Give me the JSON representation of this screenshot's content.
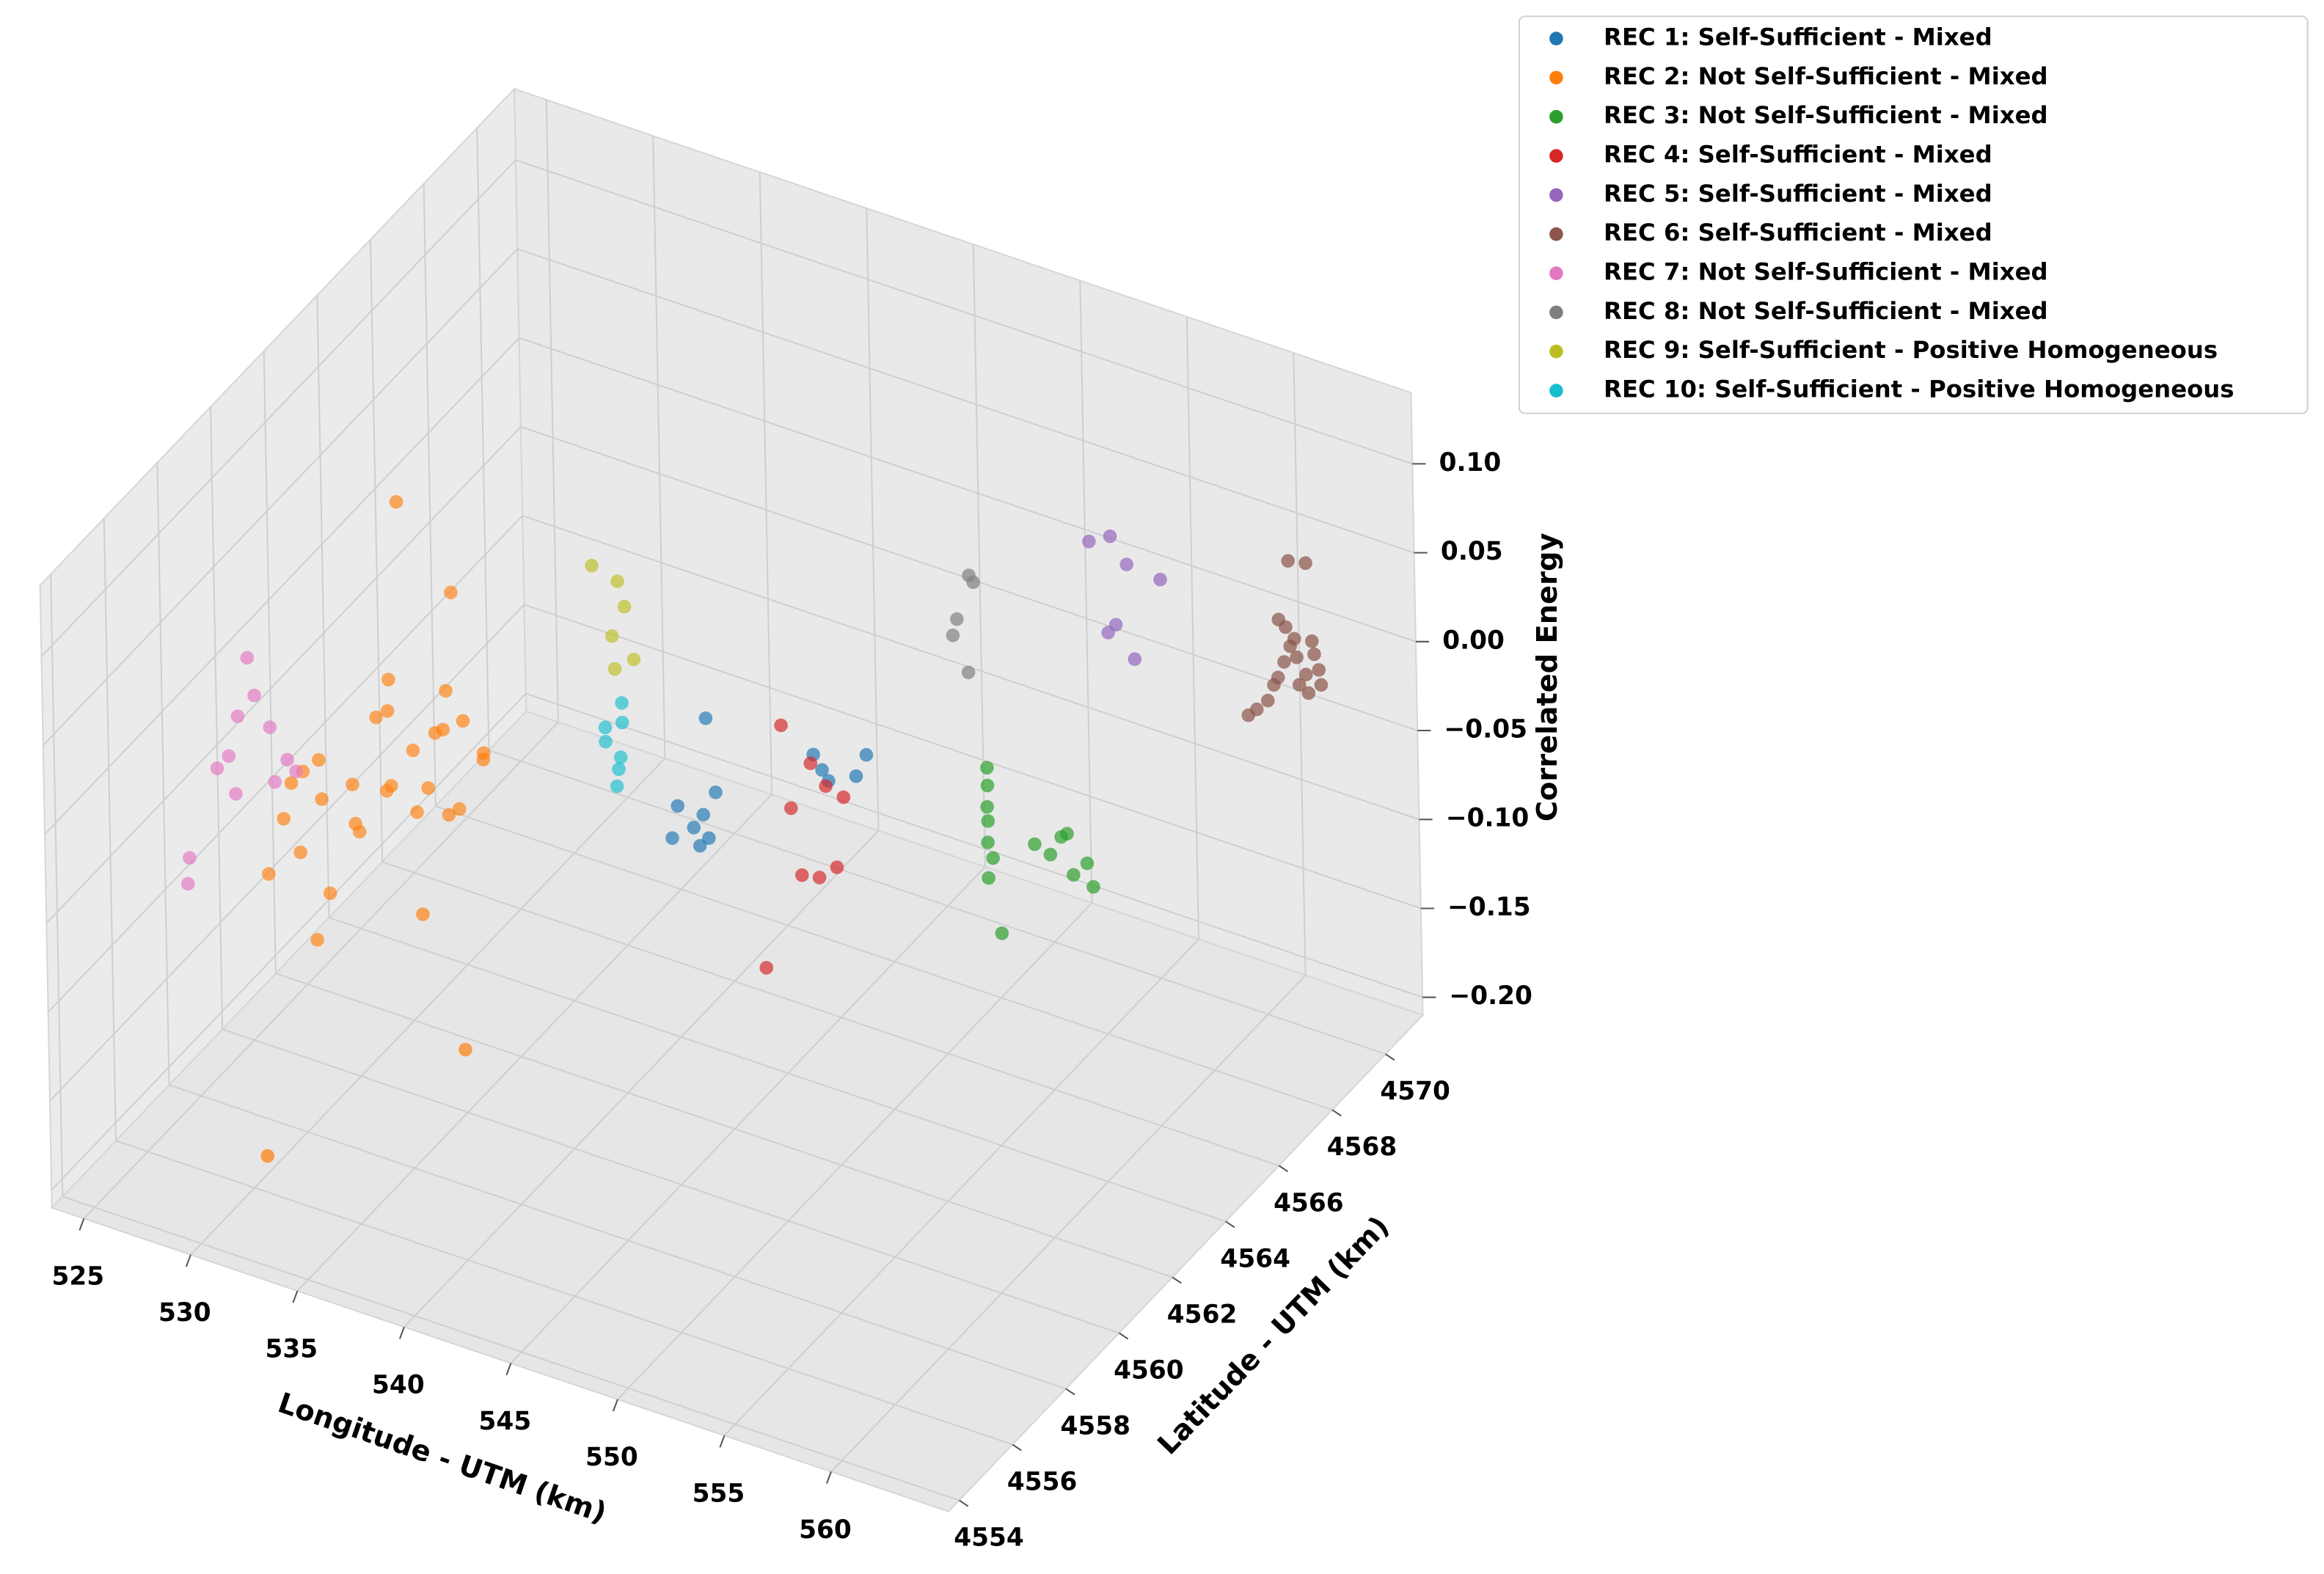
{
  "chart_data": {
    "type": "scatter3d",
    "xlabel": "Longitude - UTM (km)",
    "ylabel": "Latitude - UTM (km)",
    "zlabel": "Correlated Energy",
    "xlim": [
      523.5,
      565.5
    ],
    "ylim": [
      4553.6,
      4571.4
    ],
    "zlim": [
      -0.21,
      0.14
    ],
    "xticks": [
      525,
      530,
      535,
      540,
      545,
      550,
      555,
      560
    ],
    "yticks": [
      4554,
      4556,
      4558,
      4560,
      4562,
      4564,
      4566,
      4568,
      4570
    ],
    "zticks": [
      {
        "value": -0.2,
        "label": "−0.20"
      },
      {
        "value": -0.15,
        "label": "−0.15"
      },
      {
        "value": -0.1,
        "label": "−0.10"
      },
      {
        "value": -0.05,
        "label": "−0.05"
      },
      {
        "value": 0,
        "label": "0.00"
      },
      {
        "value": 0.05,
        "label": "0.05"
      },
      {
        "value": 0.1,
        "label": "0.10"
      }
    ],
    "grid": true,
    "legend": "upper right",
    "series": [
      {
        "name": "REC 1: Self-Sufficient - Mixed",
        "color": "#1f77b4",
        "x": [
          539.9,
          540.3,
          538.5,
          539.7,
          539.5,
          540.2,
          539.9,
          538.6,
          543.4,
          543.8,
          544.1,
          545.4,
          545.9
        ],
        "y": [
          4565.2,
          4565.2,
          4565.2,
          4565.2,
          4565.0,
          4565.0,
          4564.9,
          4564.9,
          4566.4,
          4566.4,
          4566.4,
          4566.4,
          4566.4
        ],
        "z": [
          -0.05,
          -0.09,
          -0.105,
          -0.105,
          -0.11,
          -0.113,
          -0.117,
          -0.118,
          -0.075,
          -0.082,
          -0.087,
          -0.079,
          -0.065
        ]
      },
      {
        "name": "REC 2: Not Self-Sufficient - Mixed",
        "color": "#ff7f0e",
        "x": [
          524.8,
          525.3,
          525.8,
          526.2,
          526.6,
          527.0,
          527.4,
          527.8,
          528.2,
          528.6,
          529.0,
          529.4,
          529.8,
          530.2,
          530.6,
          531.0,
          531.4,
          531.8,
          532.2,
          532.6,
          526.4,
          527.2,
          528.0,
          529.2,
          530.4,
          531.6,
          525.6,
          526.9,
          529.6,
          530.0,
          533.4,
          531.0,
          530.3
        ],
        "y": [
          4560.8,
          4561.0,
          4561.2,
          4560.6,
          4561.4,
          4561.0,
          4562.0,
          4561.6,
          4562.2,
          4562.4,
          4562.0,
          4562.6,
          4562.4,
          4562.8,
          4562.2,
          4562.6,
          4562.9,
          4562.4,
          4563.0,
          4562.7,
          4561.8,
          4562.3,
          4562.7,
          4561.9,
          4563.1,
          4562.0,
          4561.5,
          4560.9,
          4562.0,
          4556.5,
          4561.2,
          4561.6,
          4563.4
        ],
        "z": [
          -0.13,
          -0.1,
          -0.12,
          -0.07,
          -0.09,
          -0.06,
          -0.11,
          -0.08,
          -0.05,
          -0.09,
          -0.04,
          -0.07,
          -0.1,
          -0.06,
          -0.08,
          -0.03,
          -0.05,
          -0.09,
          -0.07,
          -0.06,
          -0.15,
          -0.12,
          -0.1,
          -0.02,
          -0.11,
          -0.04,
          -0.08,
          -0.16,
          0.08,
          -0.2,
          -0.2,
          -0.14,
          0.01
        ]
      },
      {
        "name": "REC 3: Not Self-Sufficient - Mixed",
        "color": "#2ca02c",
        "x": [
          550.3,
          550.3,
          550.4,
          550.3,
          550.4,
          550.5,
          550.4,
          551.2,
          551.8,
          552.2,
          552.6,
          553.0,
          553.4,
          553.8,
          550.6
        ],
        "y": [
          4567.4,
          4567.4,
          4567.3,
          4567.4,
          4567.3,
          4567.4,
          4567.3,
          4568.4,
          4568.5,
          4568.6,
          4568.5,
          4568.4,
          4568.6,
          4568.5,
          4567.6
        ],
        "z": [
          -0.07,
          -0.08,
          -0.09,
          -0.1,
          -0.11,
          -0.12,
          -0.13,
          -0.125,
          -0.13,
          -0.12,
          -0.115,
          -0.135,
          -0.13,
          -0.14,
          -0.165
        ]
      },
      {
        "name": "REC 4: Self-Sufficient - Mixed",
        "color": "#d62728",
        "x": [
          542.8,
          543.9,
          543.2,
          544.6,
          545.3,
          543.4,
          544.1,
          544.8,
          541.9
        ],
        "y": [
          4565.7,
          4565.9,
          4565.7,
          4565.9,
          4566.0,
          4565.9,
          4566.0,
          4566.1,
          4565.7
        ],
        "z": [
          -0.05,
          -0.07,
          -0.095,
          -0.08,
          -0.085,
          -0.135,
          -0.135,
          -0.128,
          -0.19
        ]
      },
      {
        "name": "REC 5: Self-Sufficient - Mixed",
        "color": "#9467bd",
        "x": [
          553.0,
          554.0,
          556.2,
          554.5,
          554.2,
          553.7,
          554.8
        ],
        "y": [
          4569.2,
          4569.2,
          4569.3,
          4569.4,
          4569.2,
          4569.3,
          4569.4
        ],
        "z": [
          0.04,
          0.047,
          0.03,
          0.03,
          -0.002,
          -0.01,
          -0.022
        ]
      },
      {
        "name": "REC 6: Self-Sufficient - Mixed",
        "color": "#8c564b",
        "x": [
          558.7,
          559.1,
          559.5,
          560.0,
          560.3,
          560.6,
          560.9,
          561.2,
          561.5,
          561.8,
          560.4,
          561.0,
          561.6,
          560.8,
          561.3,
          559.8,
          560.2,
          561.9,
          561.4,
          560.7
        ],
        "y": [
          4570.5,
          4570.5,
          4570.6,
          4570.6,
          4570.6,
          4570.6,
          4570.6,
          4570.7,
          4570.7,
          4570.7,
          4570.6,
          4570.6,
          4570.7,
          4570.6,
          4570.7,
          4570.6,
          4570.5,
          4570.7,
          4570.6,
          4570.5
        ],
        "z": [
          -0.055,
          -0.05,
          -0.045,
          -0.03,
          -0.02,
          -0.01,
          -0.015,
          -0.025,
          -0.005,
          -0.02,
          0.0,
          -0.03,
          -0.012,
          -0.005,
          -0.035,
          -0.035,
          0.005,
          -0.028,
          0.04,
          0.04
        ]
      },
      {
        "name": "REC 7: Not Self-Sufficient - Mixed",
        "color": "#e377c2",
        "x": [
          525.0,
          525.3,
          524.5,
          526.0,
          524.0,
          524.3,
          526.8,
          527.2,
          524.6,
          523.9,
          523.8,
          526.2
        ],
        "y": [
          4560.0,
          4560.0,
          4560.0,
          4560.0,
          4559.6,
          4559.8,
          4560.0,
          4560.0,
          4559.8,
          4558.6,
          4558.6,
          4560.0
        ],
        "z": [
          0.005,
          -0.015,
          -0.03,
          -0.03,
          -0.055,
          -0.05,
          -0.045,
          -0.05,
          -0.07,
          -0.09,
          -0.105,
          -0.06
        ]
      },
      {
        "name": "REC 8: Not Self-Sufficient - Mixed",
        "color": "#7f7f7f",
        "x": [
          549.1,
          549.3,
          548.5,
          548.3,
          549.0
        ],
        "y": [
          4567.8,
          4567.8,
          4567.8,
          4567.8,
          4567.8
        ],
        "z": [
          0.027,
          0.024,
          0.0,
          -0.01,
          -0.028
        ]
      },
      {
        "name": "REC 9: Self-Sufficient - Positive Homogeneous",
        "color": "#bcbd22",
        "x": [
          535.3,
          536.5,
          536.8,
          536.2,
          537.2,
          536.3
        ],
        "y": [
          4564.7,
          4564.7,
          4564.7,
          4564.7,
          4564.7,
          4564.7
        ],
        "z": [
          0.025,
          0.021,
          0.008,
          -0.011,
          -0.02,
          -0.029
        ]
      },
      {
        "name": "REC 10: Self-Sufficient - Positive Homogeneous",
        "color": "#17becf",
        "x": [
          536.6,
          536.6,
          535.8,
          535.8,
          536.5,
          536.4,
          536.3
        ],
        "y": [
          4564.7,
          4564.7,
          4564.7,
          4564.7,
          4564.7,
          4564.7,
          4564.7
        ],
        "z": [
          -0.047,
          -0.058,
          -0.064,
          -0.072,
          -0.078,
          -0.085,
          -0.095
        ]
      }
    ]
  }
}
